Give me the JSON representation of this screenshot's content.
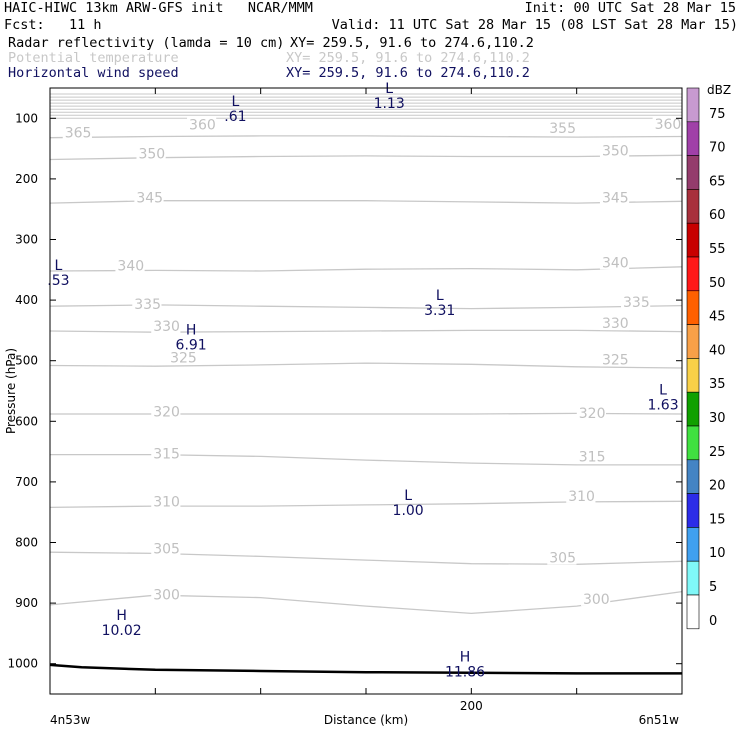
{
  "header": {
    "title": "HAIC-HIWC 13km ARW-GFS init   NCAR/MMM",
    "init": "Init: 00 UTC Sat 28 Mar 15",
    "fcst": "Fcst:   11 h",
    "valid": "Valid: 11 UTC Sat 28 Mar 15 (08 LST Sat 28 Mar 15)",
    "fields": [
      {
        "label": "Radar reflectivity (lamda = 10 cm)",
        "xy": "XY= 259.5, 91.6 to 274.6,110.2",
        "color": "#000000"
      },
      {
        "label": "Potential temperature",
        "xy": "XY= 259.5, 91.6 to 274.6,110.2",
        "color": "#c8c8c8"
      },
      {
        "label": "Horizontal wind speed",
        "xy": "XY= 259.5, 91.6 to 274.6,110.2",
        "color": "#101060"
      }
    ]
  },
  "chart_data": {
    "type": "line",
    "title": "HAIC-HIWC 13km ARW-GFS init",
    "xlabel": "Distance (km)",
    "ylabel": "Pressure (hPa)",
    "xlim": [
      0,
      300
    ],
    "ylim": [
      1050,
      50
    ],
    "x_ticks": [
      "0",
      "50",
      "100",
      "150",
      "200",
      "250"
    ],
    "x_tick_labels": {
      "200": "200"
    },
    "y_ticks": [
      "100",
      "200",
      "300",
      "400",
      "500",
      "600",
      "700",
      "800",
      "900",
      "1000"
    ],
    "x_endpoints": {
      "left": "4n53w",
      "right": "6n51w"
    },
    "isentropes": [
      {
        "theta": "355",
        "points": [
          [
            0,
            132
          ],
          [
            50,
            130
          ],
          [
            100,
            129
          ],
          [
            150,
            129
          ],
          [
            200,
            130
          ],
          [
            250,
            131
          ],
          [
            300,
            130
          ]
        ]
      },
      {
        "theta": "350",
        "points": [
          [
            0,
            168
          ],
          [
            50,
            165
          ],
          [
            100,
            163
          ],
          [
            150,
            162
          ],
          [
            200,
            163
          ],
          [
            250,
            163
          ],
          [
            300,
            161
          ]
        ]
      },
      {
        "theta": "345",
        "points": [
          [
            0,
            240
          ],
          [
            50,
            236
          ],
          [
            100,
            236
          ],
          [
            150,
            236
          ],
          [
            200,
            238
          ],
          [
            250,
            240
          ],
          [
            300,
            237
          ]
        ]
      },
      {
        "theta": "340",
        "points": [
          [
            0,
            352
          ],
          [
            50,
            351
          ],
          [
            100,
            352
          ],
          [
            150,
            349
          ],
          [
            200,
            348
          ],
          [
            250,
            350
          ],
          [
            300,
            345
          ]
        ]
      },
      {
        "theta": "335",
        "points": [
          [
            0,
            410
          ],
          [
            50,
            408
          ],
          [
            100,
            410
          ],
          [
            150,
            412
          ],
          [
            200,
            414
          ],
          [
            250,
            412
          ],
          [
            300,
            409
          ]
        ]
      },
      {
        "theta": "330",
        "points": [
          [
            0,
            451
          ],
          [
            50,
            453
          ],
          [
            100,
            452
          ],
          [
            150,
            451
          ],
          [
            200,
            450
          ],
          [
            250,
            450
          ],
          [
            300,
            452
          ]
        ]
      },
      {
        "theta": "325",
        "points": [
          [
            0,
            508
          ],
          [
            50,
            509
          ],
          [
            100,
            507
          ],
          [
            150,
            504
          ],
          [
            200,
            506
          ],
          [
            250,
            510
          ],
          [
            300,
            512
          ]
        ]
      },
      {
        "theta": "320",
        "points": [
          [
            0,
            588
          ],
          [
            50,
            588
          ],
          [
            100,
            588
          ],
          [
            150,
            588
          ],
          [
            200,
            588
          ],
          [
            250,
            587
          ],
          [
            300,
            588
          ]
        ]
      },
      {
        "theta": "315",
        "points": [
          [
            0,
            655
          ],
          [
            50,
            655
          ],
          [
            100,
            658
          ],
          [
            150,
            664
          ],
          [
            200,
            669
          ],
          [
            250,
            672
          ],
          [
            300,
            672
          ]
        ]
      },
      {
        "theta": "310",
        "points": [
          [
            0,
            742
          ],
          [
            50,
            740
          ],
          [
            100,
            740
          ],
          [
            150,
            738
          ],
          [
            200,
            736
          ],
          [
            250,
            733
          ],
          [
            300,
            732
          ]
        ]
      },
      {
        "theta": "305",
        "points": [
          [
            0,
            816
          ],
          [
            50,
            818
          ],
          [
            100,
            823
          ],
          [
            150,
            829
          ],
          [
            200,
            835
          ],
          [
            250,
            836
          ],
          [
            300,
            831
          ]
        ]
      },
      {
        "theta": "300",
        "points": [
          [
            0,
            903
          ],
          [
            50,
            887
          ],
          [
            100,
            891
          ],
          [
            150,
            905
          ],
          [
            200,
            917
          ],
          [
            250,
            905
          ],
          [
            300,
            881
          ]
        ]
      }
    ],
    "upper_contours": [
      60,
      65,
      70,
      75,
      80,
      85,
      90,
      95,
      100
    ],
    "theta_labels": [
      {
        "text": "365",
        "x": 7,
        "p": 128
      },
      {
        "text": "360",
        "x": 66,
        "p": 115
      },
      {
        "text": "355",
        "x": 237,
        "p": 121
      },
      {
        "text": "360",
        "x": 287,
        "p": 114
      },
      {
        "text": "350",
        "x": 42,
        "p": 163
      },
      {
        "text": "350",
        "x": 262,
        "p": 158
      },
      {
        "text": "345",
        "x": 41,
        "p": 236
      },
      {
        "text": "345",
        "x": 262,
        "p": 236
      },
      {
        "text": "340",
        "x": 32,
        "p": 348
      },
      {
        "text": "340",
        "x": 262,
        "p": 343
      },
      {
        "text": "335",
        "x": 40,
        "p": 411
      },
      {
        "text": "335",
        "x": 272,
        "p": 408
      },
      {
        "text": "330",
        "x": 49,
        "p": 448
      },
      {
        "text": "330",
        "x": 262,
        "p": 443
      },
      {
        "text": "325",
        "x": 57,
        "p": 500
      },
      {
        "text": "325",
        "x": 262,
        "p": 503
      },
      {
        "text": "320",
        "x": 49,
        "p": 589
      },
      {
        "text": "320",
        "x": 251,
        "p": 591
      },
      {
        "text": "315",
        "x": 49,
        "p": 658
      },
      {
        "text": "315",
        "x": 251,
        "p": 663
      },
      {
        "text": "310",
        "x": 49,
        "p": 737
      },
      {
        "text": "310",
        "x": 246,
        "p": 728
      },
      {
        "text": "305",
        "x": 49,
        "p": 815
      },
      {
        "text": "305",
        "x": 237,
        "p": 830
      },
      {
        "text": "300",
        "x": 49,
        "p": 891
      },
      {
        "text": "300",
        "x": 253,
        "p": 898
      }
    ],
    "wind_extrema": [
      {
        "type": "L",
        "value": "1.13",
        "x": 161,
        "p": 58
      },
      {
        "type": "L",
        "value": ".61",
        "x": 88,
        "p": 80
      },
      {
        "type": "L",
        "value": ".53",
        "x": 4,
        "p": 350
      },
      {
        "type": "L",
        "value": "3.31",
        "x": 185,
        "p": 400
      },
      {
        "type": "H",
        "value": "6.91",
        "x": 67,
        "p": 457
      },
      {
        "type": "L",
        "value": "1.63",
        "x": 291,
        "p": 556
      },
      {
        "type": "L",
        "value": "1.00",
        "x": 170,
        "p": 730
      },
      {
        "type": "H",
        "value": "10.02",
        "x": 34,
        "p": 928
      },
      {
        "type": "H",
        "value": "11.86",
        "x": 197,
        "p": 996
      }
    ],
    "terrain": [
      [
        0,
        1002
      ],
      [
        15,
        1006
      ],
      [
        50,
        1010
      ],
      [
        100,
        1012
      ],
      [
        150,
        1014
      ],
      [
        200,
        1015
      ],
      [
        250,
        1016
      ],
      [
        300,
        1016
      ]
    ]
  },
  "colorbar": {
    "unit": "dBZ",
    "levels": [
      {
        "label": "75",
        "color": "#c89ad0"
      },
      {
        "label": "70",
        "color": "#a040a8"
      },
      {
        "label": "65",
        "color": "#943c6c"
      },
      {
        "label": "60",
        "color": "#a8303c"
      },
      {
        "label": "55",
        "color": "#c80000"
      },
      {
        "label": "50",
        "color": "#ff1818"
      },
      {
        "label": "45",
        "color": "#ff6000"
      },
      {
        "label": "40",
        "color": "#f8a048"
      },
      {
        "label": "35",
        "color": "#f8d048"
      },
      {
        "label": "30",
        "color": "#10a000"
      },
      {
        "label": "25",
        "color": "#40e040"
      },
      {
        "label": "20",
        "color": "#4484c4"
      },
      {
        "label": "15",
        "color": "#2c2ce8"
      },
      {
        "label": "10",
        "color": "#40a0f0"
      },
      {
        "label": "5",
        "color": "#80f8f8"
      },
      {
        "label": "0",
        "color": "#ffffff"
      }
    ]
  }
}
